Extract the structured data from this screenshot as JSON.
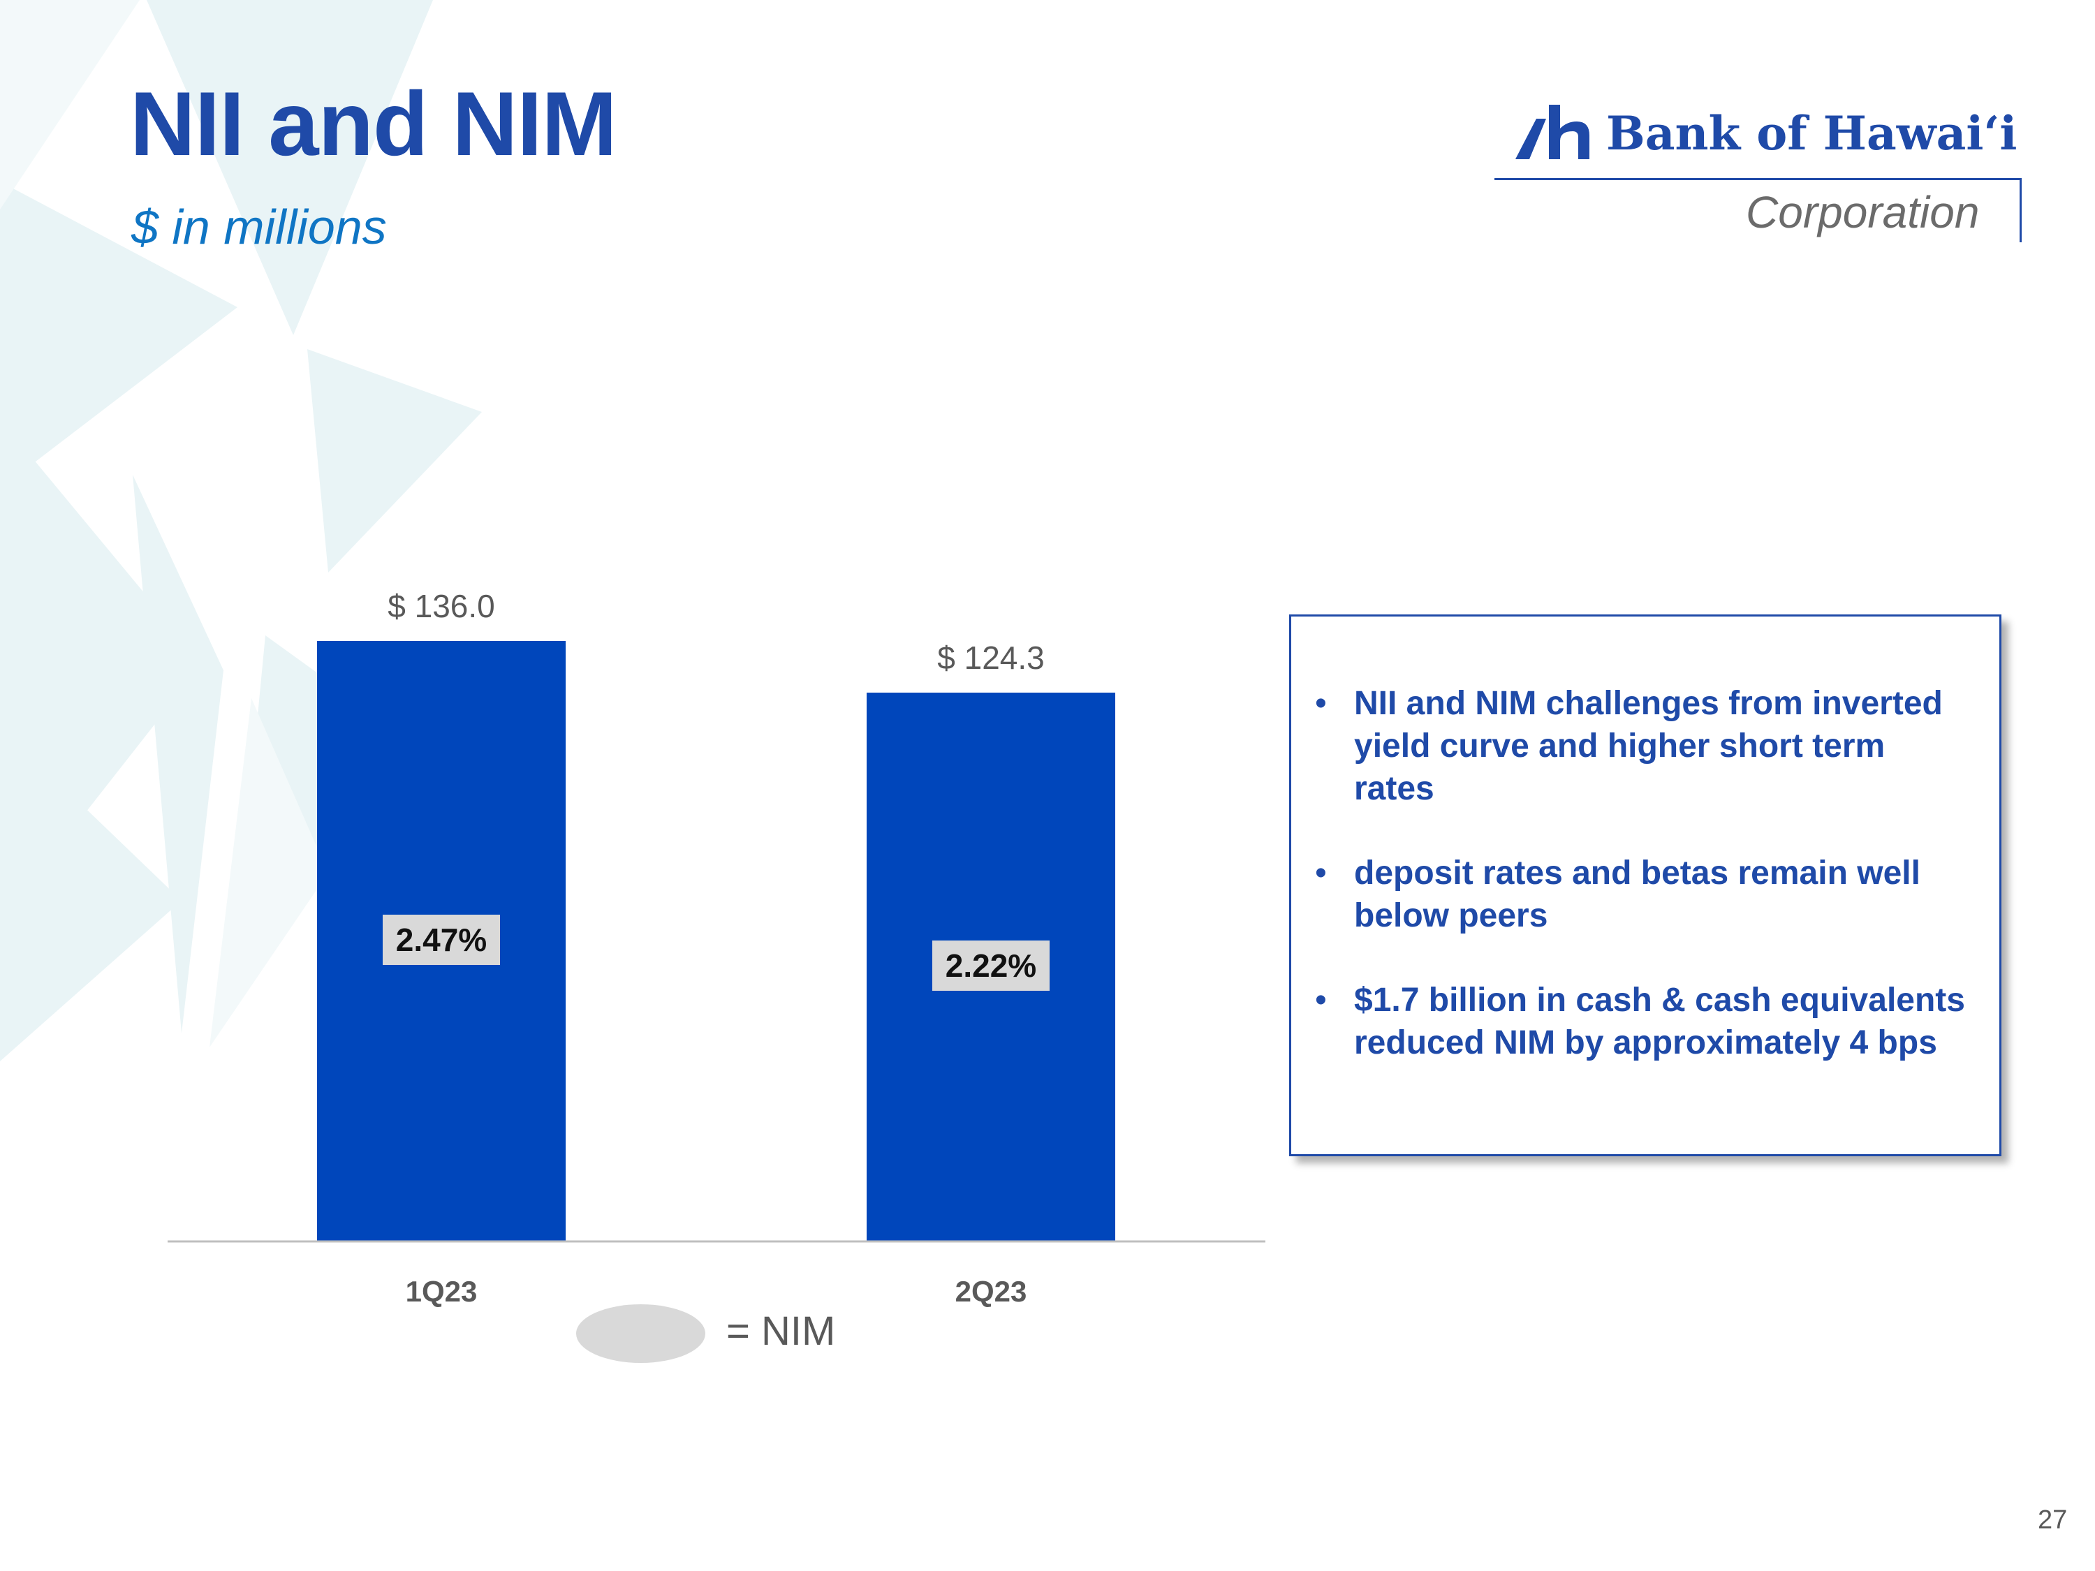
{
  "title": "NII and NIM",
  "subtitle": "$ in millions",
  "logo": {
    "name": "Bank of Hawai‘i",
    "sub": "Corporation",
    "icon": "bank-of-hawaii-logo-icon"
  },
  "colors": {
    "brand": "#1f4aa8",
    "bar": "#0046bb",
    "nim_label_bg": "#d9d9d9",
    "subtitle": "#0f75c4"
  },
  "chart_data": {
    "type": "bar",
    "title": "",
    "xlabel": "",
    "ylabel": "",
    "categories": [
      "1Q23",
      "2Q23"
    ],
    "values": [
      136.0,
      124.3
    ],
    "value_labels": [
      "$ 136.0",
      "$ 124.3"
    ],
    "nim_labels": [
      "2.47%",
      "2.22%"
    ],
    "nim_values": [
      2.47,
      2.22
    ],
    "ylim": [
      0,
      136.0
    ],
    "grid": false,
    "legend": {
      "label": "= NIM",
      "placement": "bottom-center"
    }
  },
  "notes": {
    "items": [
      "NII and NIM challenges from inverted yield curve and higher short term rates",
      "deposit rates and betas remain well below peers",
      "$1.7 billion in cash & cash equivalents reduced NIM by approximately 4 bps"
    ],
    "bullet": "•"
  },
  "page_number": "27"
}
